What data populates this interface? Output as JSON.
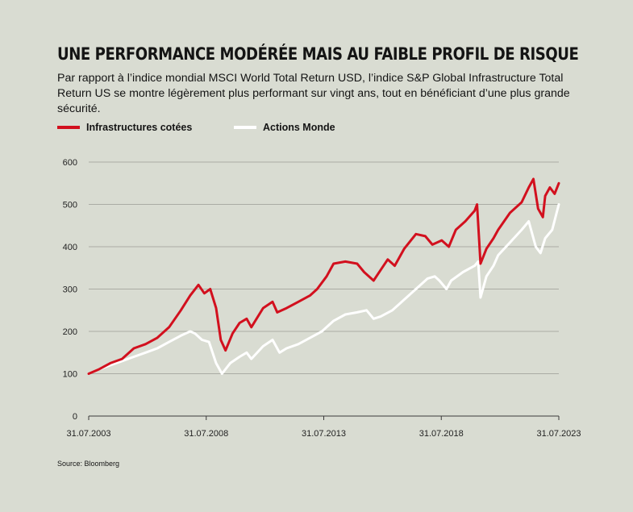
{
  "header": {
    "title": "UNE PERFORMANCE MODÉRÉE MAIS AU FAIBLE PROFIL DE RISQUE",
    "subtitle": "Par rapport à l’indice mondial MSCI World Total Return USD, l’indice S&P Global Infrastructure Total Return US se montre légèrement plus performant sur vingt ans, tout en bénéficiant d’une plus grande sécurité."
  },
  "source": "Source: Bloomberg",
  "colors": {
    "background": "#d9dcd2",
    "infra": "#d2101e",
    "world": "#ffffff",
    "grid": "#9a9d95"
  },
  "chart_data": {
    "type": "line",
    "title": "UNE PERFORMANCE MODÉRÉE MAIS AU FAIBLE PROFIL DE RISQUE",
    "xlabel": "",
    "ylabel": "",
    "ylim": [
      0,
      600
    ],
    "yticks": [
      "0",
      "100",
      "200",
      "300",
      "400",
      "500",
      "600"
    ],
    "xlim": [
      2003.58,
      2023.58
    ],
    "xticks": [
      {
        "label": "31.07.2003",
        "x": 2003.58
      },
      {
        "label": "31.07.2008",
        "x": 2008.58
      },
      {
        "label": "31.07.2013",
        "x": 2013.58
      },
      {
        "label": "31.07.2018",
        "x": 2018.58
      },
      {
        "label": "31.07.2023",
        "x": 2023.58
      }
    ],
    "grid": true,
    "legend": "top-left",
    "series": [
      {
        "name": "Infrastructures cotées",
        "color": "#d2101e",
        "points": [
          [
            2003.58,
            100
          ],
          [
            2004.0,
            110
          ],
          [
            2004.5,
            125
          ],
          [
            2005.0,
            135
          ],
          [
            2005.5,
            160
          ],
          [
            2006.0,
            170
          ],
          [
            2006.5,
            185
          ],
          [
            2007.0,
            210
          ],
          [
            2007.5,
            250
          ],
          [
            2007.9,
            285
          ],
          [
            2008.25,
            310
          ],
          [
            2008.5,
            290
          ],
          [
            2008.75,
            300
          ],
          [
            2009.0,
            255
          ],
          [
            2009.2,
            180
          ],
          [
            2009.4,
            155
          ],
          [
            2009.7,
            195
          ],
          [
            2010.0,
            220
          ],
          [
            2010.3,
            230
          ],
          [
            2010.5,
            210
          ],
          [
            2011.0,
            255
          ],
          [
            2011.4,
            270
          ],
          [
            2011.6,
            245
          ],
          [
            2012.0,
            255
          ],
          [
            2012.5,
            270
          ],
          [
            2013.0,
            285
          ],
          [
            2013.3,
            300
          ],
          [
            2013.7,
            330
          ],
          [
            2014.0,
            360
          ],
          [
            2014.5,
            365
          ],
          [
            2015.0,
            360
          ],
          [
            2015.3,
            340
          ],
          [
            2015.7,
            320
          ],
          [
            2016.0,
            345
          ],
          [
            2016.3,
            370
          ],
          [
            2016.6,
            355
          ],
          [
            2017.0,
            395
          ],
          [
            2017.5,
            430
          ],
          [
            2017.9,
            425
          ],
          [
            2018.2,
            405
          ],
          [
            2018.6,
            415
          ],
          [
            2018.9,
            400
          ],
          [
            2019.2,
            440
          ],
          [
            2019.6,
            460
          ],
          [
            2020.0,
            485
          ],
          [
            2020.1,
            500
          ],
          [
            2020.25,
            360
          ],
          [
            2020.5,
            395
          ],
          [
            2020.8,
            420
          ],
          [
            2021.0,
            440
          ],
          [
            2021.5,
            480
          ],
          [
            2022.0,
            505
          ],
          [
            2022.3,
            540
          ],
          [
            2022.5,
            560
          ],
          [
            2022.7,
            490
          ],
          [
            2022.9,
            470
          ],
          [
            2023.0,
            520
          ],
          [
            2023.2,
            540
          ],
          [
            2023.4,
            525
          ],
          [
            2023.58,
            550
          ]
        ]
      },
      {
        "name": "Actions Monde",
        "color": "#ffffff",
        "points": [
          [
            2003.58,
            100
          ],
          [
            2004.0,
            110
          ],
          [
            2004.5,
            120
          ],
          [
            2005.0,
            130
          ],
          [
            2005.5,
            140
          ],
          [
            2006.0,
            150
          ],
          [
            2006.5,
            160
          ],
          [
            2007.0,
            175
          ],
          [
            2007.5,
            190
          ],
          [
            2007.9,
            200
          ],
          [
            2008.1,
            195
          ],
          [
            2008.4,
            180
          ],
          [
            2008.7,
            175
          ],
          [
            2009.0,
            125
          ],
          [
            2009.25,
            100
          ],
          [
            2009.6,
            125
          ],
          [
            2010.0,
            140
          ],
          [
            2010.3,
            150
          ],
          [
            2010.5,
            135
          ],
          [
            2011.0,
            165
          ],
          [
            2011.4,
            180
          ],
          [
            2011.7,
            150
          ],
          [
            2012.0,
            160
          ],
          [
            2012.5,
            170
          ],
          [
            2013.0,
            185
          ],
          [
            2013.5,
            200
          ],
          [
            2014.0,
            225
          ],
          [
            2014.5,
            240
          ],
          [
            2015.0,
            245
          ],
          [
            2015.4,
            250
          ],
          [
            2015.7,
            230
          ],
          [
            2016.0,
            235
          ],
          [
            2016.5,
            250
          ],
          [
            2017.0,
            275
          ],
          [
            2017.5,
            300
          ],
          [
            2018.0,
            325
          ],
          [
            2018.3,
            330
          ],
          [
            2018.5,
            320
          ],
          [
            2018.8,
            300
          ],
          [
            2019.0,
            320
          ],
          [
            2019.5,
            340
          ],
          [
            2020.0,
            355
          ],
          [
            2020.15,
            365
          ],
          [
            2020.25,
            280
          ],
          [
            2020.5,
            330
          ],
          [
            2020.8,
            355
          ],
          [
            2021.0,
            380
          ],
          [
            2021.5,
            410
          ],
          [
            2022.0,
            440
          ],
          [
            2022.3,
            460
          ],
          [
            2022.6,
            400
          ],
          [
            2022.8,
            385
          ],
          [
            2023.0,
            420
          ],
          [
            2023.3,
            440
          ],
          [
            2023.58,
            500
          ]
        ]
      }
    ]
  }
}
